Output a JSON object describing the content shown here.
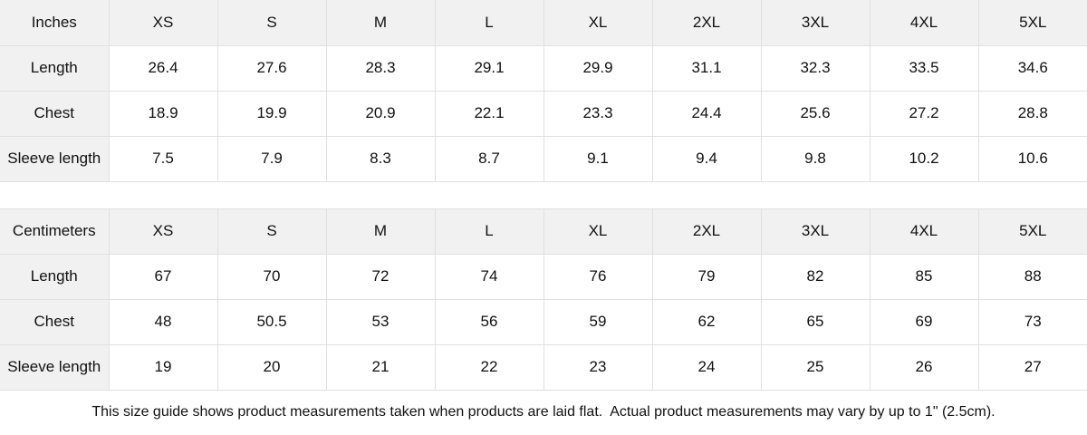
{
  "tables": [
    {
      "unit_label": "Inches",
      "sizes": [
        "XS",
        "S",
        "M",
        "L",
        "XL",
        "2XL",
        "3XL",
        "4XL",
        "5XL"
      ],
      "rows": [
        {
          "label": "Length",
          "values": [
            "26.4",
            "27.6",
            "28.3",
            "29.1",
            "29.9",
            "31.1",
            "32.3",
            "33.5",
            "34.6"
          ]
        },
        {
          "label": "Chest",
          "values": [
            "18.9",
            "19.9",
            "20.9",
            "22.1",
            "23.3",
            "24.4",
            "25.6",
            "27.2",
            "28.8"
          ]
        },
        {
          "label": "Sleeve length",
          "values": [
            "7.5",
            "7.9",
            "8.3",
            "8.7",
            "9.1",
            "9.4",
            "9.8",
            "10.2",
            "10.6"
          ]
        }
      ]
    },
    {
      "unit_label": "Centimeters",
      "sizes": [
        "XS",
        "S",
        "M",
        "L",
        "XL",
        "2XL",
        "3XL",
        "4XL",
        "5XL"
      ],
      "rows": [
        {
          "label": "Length",
          "values": [
            "67",
            "70",
            "72",
            "74",
            "76",
            "79",
            "82",
            "85",
            "88"
          ]
        },
        {
          "label": "Chest",
          "values": [
            "48",
            "50.5",
            "53",
            "56",
            "59",
            "62",
            "65",
            "69",
            "73"
          ]
        },
        {
          "label": "Sleeve length",
          "values": [
            "19",
            "20",
            "21",
            "22",
            "23",
            "24",
            "25",
            "26",
            "27"
          ]
        }
      ]
    }
  ],
  "footer": {
    "note": "This size guide shows product measurements taken when products are laid flat.  Actual product measurements may vary by up to 1\" (2.5cm)."
  },
  "colors": {
    "header_bg": "#f1f1f1",
    "border": "#e0e0e0",
    "text": "#111111",
    "background": "#ffffff"
  }
}
